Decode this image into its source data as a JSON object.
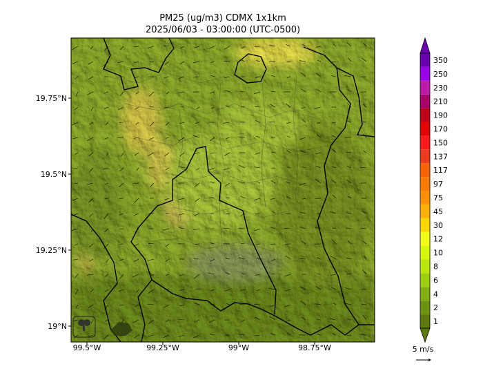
{
  "title_line1": "PM25 (ug/m3) CDMX 1x1km",
  "title_line2": "2025/06/03 - 03:00:00 (UTC-0500)",
  "axes": {
    "x_ticks": [
      {
        "value": -99.5,
        "label": "99.5°W"
      },
      {
        "value": -99.25,
        "label": "99.25°W"
      },
      {
        "value": -99.0,
        "label": "99°W"
      },
      {
        "value": -98.75,
        "label": "98.75°W"
      }
    ],
    "y_ticks": [
      {
        "value": 19.75,
        "label": "19.75°N"
      },
      {
        "value": 19.5,
        "label": "19.5°N"
      },
      {
        "value": 19.25,
        "label": "19.25°N"
      },
      {
        "value": 19.0,
        "label": "19°N"
      }
    ]
  },
  "colorbar": {
    "levels": [
      {
        "label": "1",
        "color": "#5e7a10"
      },
      {
        "label": "2",
        "color": "#6f9412"
      },
      {
        "label": "4",
        "color": "#85b011"
      },
      {
        "label": "6",
        "color": "#9fd00d"
      },
      {
        "label": "8",
        "color": "#bbe80a"
      },
      {
        "label": "10",
        "color": "#d8f80a"
      },
      {
        "label": "12",
        "color": "#f3ff14"
      },
      {
        "label": "30",
        "color": "#ffd700"
      },
      {
        "label": "45",
        "color": "#ffb000"
      },
      {
        "label": "75",
        "color": "#ff9000"
      },
      {
        "label": "97",
        "color": "#ff7a00"
      },
      {
        "label": "117",
        "color": "#ff6400"
      },
      {
        "label": "137",
        "color": "#f03c1e"
      },
      {
        "label": "150",
        "color": "#ff1a1a"
      },
      {
        "label": "170",
        "color": "#e40000"
      },
      {
        "label": "190",
        "color": "#c0001a"
      },
      {
        "label": "210",
        "color": "#a8006a"
      },
      {
        "label": "230",
        "color": "#c21aa8"
      },
      {
        "label": "250",
        "color": "#9a00e6"
      },
      {
        "label": "350",
        "color": "#6a00b0"
      }
    ]
  },
  "wind_key": "5 m/s"
}
